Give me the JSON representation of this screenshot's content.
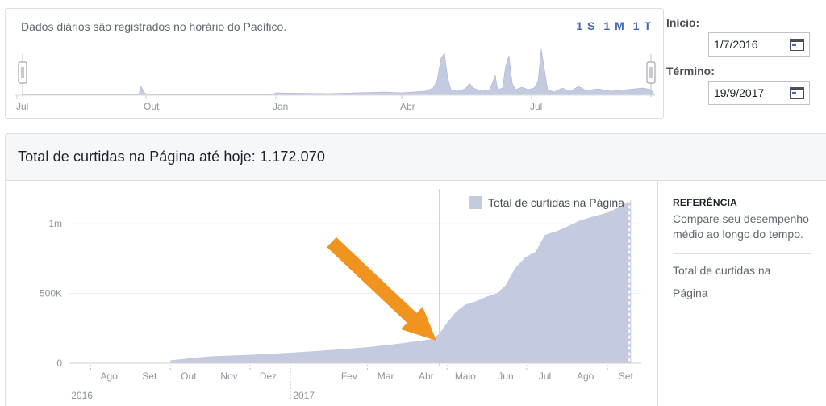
{
  "range": {
    "note": "Dados diários são registrados no horário do Pacífico.",
    "buttons": [
      "1 S",
      "1 M",
      "1 T"
    ],
    "axis_labels": [
      "Jul",
      "Out",
      "Jan",
      "Abr",
      "Jul"
    ]
  },
  "dates": {
    "start_label": "Início:",
    "start_value": "1/7/2016",
    "end_label": "Término:",
    "end_value": "19/9/2017"
  },
  "main": {
    "title": "Total de curtidas na Página até hoje: 1.172.070"
  },
  "reference": {
    "title": "REFERÊNCIA",
    "description": "Compare seu desempenho médio ao longo do tempo.",
    "item": "Total de curtidas na Página"
  },
  "colors": {
    "area": "#c4cbe0",
    "arrow": "#f0941f",
    "marker_line": "#f6c8a0",
    "accent": "#4267b2"
  },
  "chart_data": {
    "type": "area",
    "legend": "Total de curtidas na Página",
    "y_ticks": [
      "1m",
      "500K",
      "0"
    ],
    "ylim": [
      0,
      1250000
    ],
    "month_ticks": [
      "Ago",
      "Set",
      "Out",
      "Nov",
      "Dez",
      "Fev",
      "Mar",
      "Abr",
      "Maio",
      "Jun",
      "Jul",
      "Ago",
      "Set"
    ],
    "year_ticks": [
      "2016",
      "2017"
    ],
    "series": [
      {
        "x": [
          "2016-10-01",
          "2016-10-15",
          "2016-11-01",
          "2016-12-01",
          "2017-01-01",
          "2017-02-01",
          "2017-03-01",
          "2017-03-20",
          "2017-04-10",
          "2017-04-20",
          "2017-04-25",
          "2017-05-01",
          "2017-05-08",
          "2017-05-15",
          "2017-05-22",
          "2017-06-01",
          "2017-06-08",
          "2017-06-15",
          "2017-06-22",
          "2017-06-30",
          "2017-07-08",
          "2017-07-15",
          "2017-07-25",
          "2017-08-01",
          "2017-08-10",
          "2017-08-20",
          "2017-09-01",
          "2017-09-10",
          "2017-09-19"
        ],
        "values": [
          20000,
          35000,
          50000,
          60000,
          75000,
          95000,
          115000,
          135000,
          160000,
          175000,
          210000,
          290000,
          370000,
          420000,
          440000,
          480000,
          500000,
          560000,
          680000,
          760000,
          800000,
          920000,
          950000,
          980000,
          1020000,
          1050000,
          1080000,
          1120000,
          1172070
        ]
      }
    ],
    "annotation_marker_date": "2017-04-25"
  }
}
